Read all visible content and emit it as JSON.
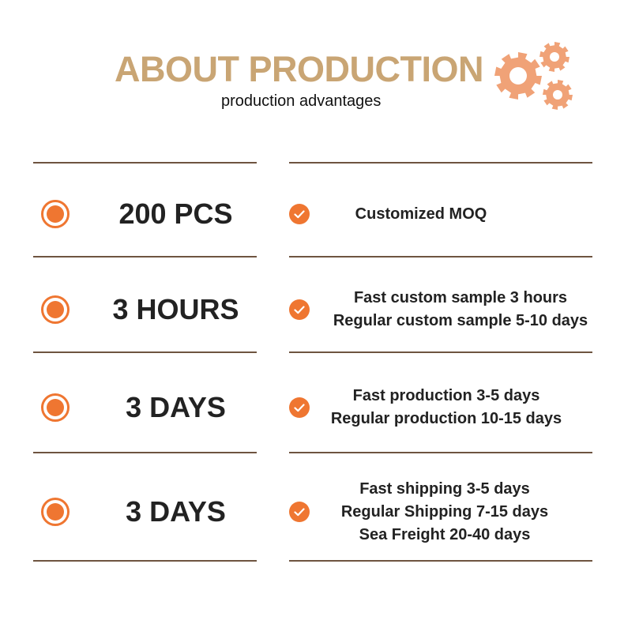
{
  "colors": {
    "title": "#c9a574",
    "accent": "#ef7631",
    "gear": "#f0a277",
    "divider": "#6e5440"
  },
  "header": {
    "title": "ABOUT PRODUCTION",
    "subtitle": "production advantages",
    "icon": "gears-icon"
  },
  "rows": [
    {
      "value": "200 PCS",
      "lines": [
        "Customized MOQ"
      ]
    },
    {
      "value": "3 HOURS",
      "lines": [
        "Fast custom sample 3 hours",
        "Regular custom sample 5-10 days"
      ]
    },
    {
      "value": "3 DAYS",
      "lines": [
        "Fast production 3-5 days",
        "Regular production 10-15 days"
      ]
    },
    {
      "value": "3 DAYS",
      "lines": [
        "Fast shipping 3-5 days",
        "Regular Shipping 7-15 days",
        "Sea Freight 20-40 days"
      ]
    }
  ]
}
